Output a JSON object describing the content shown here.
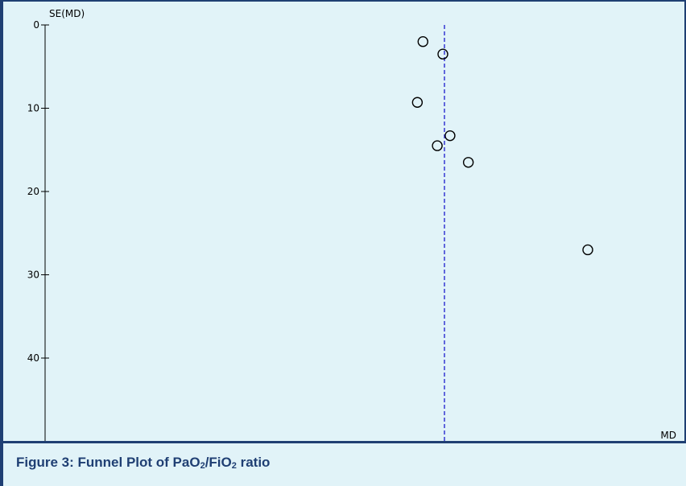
{
  "chart_data": {
    "type": "scatter",
    "title": "",
    "xlabel": "MD",
    "ylabel": "SE(MD)",
    "y_inverted": true,
    "ylim": [
      0,
      50
    ],
    "yticks": [
      "0",
      "10",
      "20",
      "30",
      "40"
    ],
    "xlim": [
      -50,
      30
    ],
    "pooled_estimate": 0,
    "points": [
      {
        "x": -2.7,
        "y": 2.0
      },
      {
        "x": -0.2,
        "y": 3.5
      },
      {
        "x": -3.4,
        "y": 9.3
      },
      {
        "x": 0.7,
        "y": 13.3
      },
      {
        "x": -0.9,
        "y": 14.5
      },
      {
        "x": 3.0,
        "y": 16.5
      },
      {
        "x": 18.0,
        "y": 27.0
      }
    ],
    "grid": false
  },
  "caption": {
    "prefix": "Figure 3: Funnel Plot of PaO",
    "sub1": "2",
    "mid": "/FiO",
    "sub2": "2",
    "suffix": " ratio"
  },
  "colors": {
    "background": "#e1f3f8",
    "frame": "#1f3f73",
    "axis": "#000000",
    "reference_line": "#1a1acc",
    "caption_text": "#1f3f73"
  }
}
